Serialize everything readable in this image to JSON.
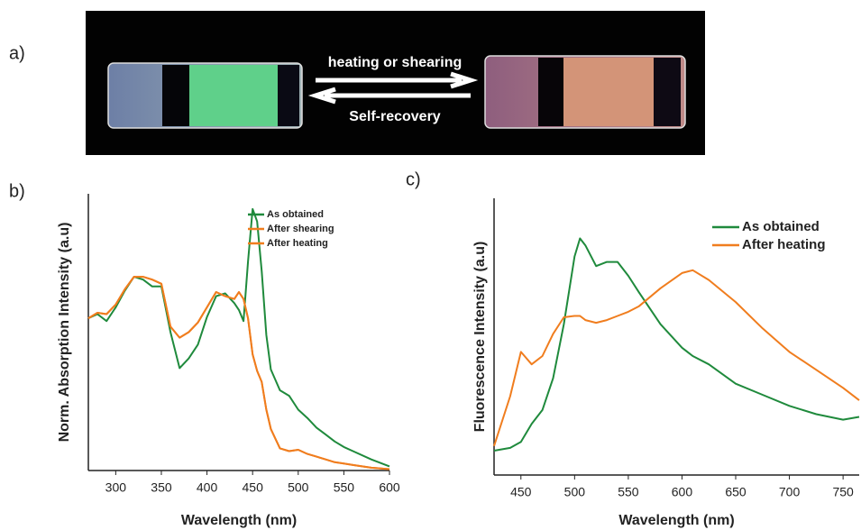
{
  "panels": {
    "a": "a)",
    "b": "b)",
    "c": "c)"
  },
  "photo": {
    "forward": "heating or shearing",
    "backward": "Self-recovery"
  },
  "chart_data": [
    {
      "type": "line",
      "x_label": "Wavelength (nm)",
      "y_label": "Norm. Absorption Intensity (a.u)",
      "x": [
        270,
        280,
        290,
        300,
        310,
        320,
        330,
        340,
        350,
        360,
        370,
        380,
        390,
        400,
        410,
        420,
        430,
        435,
        440,
        445,
        450,
        455,
        460,
        465,
        470,
        480,
        490,
        500,
        510,
        520,
        530,
        540,
        550,
        560,
        580,
        600
      ],
      "xlim": [
        270,
        600
      ],
      "xticks": [
        300,
        350,
        400,
        450,
        500,
        550,
        600
      ],
      "ylim": [
        0,
        1
      ],
      "legend": "top-center",
      "series": [
        {
          "name": "As obtained",
          "color": "#1f8a3c",
          "values": [
            0.55,
            0.565,
            0.54,
            0.59,
            0.65,
            0.7,
            0.69,
            0.665,
            0.665,
            0.5,
            0.37,
            0.405,
            0.455,
            0.555,
            0.63,
            0.64,
            0.605,
            0.58,
            0.54,
            0.755,
            0.945,
            0.9,
            0.72,
            0.49,
            0.365,
            0.29,
            0.27,
            0.22,
            0.19,
            0.155,
            0.13,
            0.105,
            0.085,
            0.07,
            0.04,
            0.015
          ]
        },
        {
          "name": "After shearing",
          "color": "#f07d1e",
          "values": [
            0.55,
            0.57,
            0.565,
            0.6,
            0.655,
            0.7,
            0.7,
            0.69,
            0.675,
            0.52,
            0.48,
            0.5,
            0.535,
            0.59,
            0.645,
            0.63,
            0.62,
            0.645,
            0.62,
            0.55,
            0.42,
            0.36,
            0.32,
            0.22,
            0.15,
            0.08,
            0.07,
            0.075,
            0.06,
            0.05,
            0.04,
            0.03,
            0.025,
            0.02,
            0.01,
            0.005
          ]
        },
        {
          "name": "After heating",
          "color": "#f07d1e",
          "values": [
            0.55,
            0.57,
            0.565,
            0.6,
            0.655,
            0.7,
            0.7,
            0.69,
            0.675,
            0.52,
            0.48,
            0.5,
            0.535,
            0.59,
            0.645,
            0.63,
            0.62,
            0.645,
            0.62,
            0.55,
            0.42,
            0.36,
            0.32,
            0.22,
            0.15,
            0.08,
            0.07,
            0.075,
            0.06,
            0.05,
            0.04,
            0.03,
            0.025,
            0.02,
            0.01,
            0.005
          ]
        }
      ]
    },
    {
      "type": "line",
      "x_label": "Wavelength (nm)",
      "y_label": "Fluorescence Intensity (a.u)",
      "x": [
        425,
        440,
        450,
        460,
        470,
        480,
        490,
        500,
        505,
        510,
        520,
        530,
        540,
        550,
        560,
        580,
        600,
        610,
        625,
        650,
        675,
        700,
        725,
        750,
        765
      ],
      "xlim": [
        425,
        765
      ],
      "xticks": [
        450,
        500,
        550,
        600,
        650,
        700,
        750
      ],
      "ylim": [
        0,
        1
      ],
      "legend": "top-right",
      "series": [
        {
          "name": "As obtained",
          "color": "#1f8a3c",
          "values": [
            0.088,
            0.098,
            0.12,
            0.185,
            0.235,
            0.35,
            0.545,
            0.79,
            0.855,
            0.83,
            0.755,
            0.77,
            0.77,
            0.72,
            0.66,
            0.545,
            0.46,
            0.43,
            0.4,
            0.33,
            0.29,
            0.25,
            0.22,
            0.2,
            0.21
          ]
        },
        {
          "name": "After heating",
          "color": "#f07d1e",
          "values": [
            0.105,
            0.285,
            0.445,
            0.4,
            0.43,
            0.51,
            0.57,
            0.575,
            0.575,
            0.56,
            0.55,
            0.56,
            0.575,
            0.59,
            0.61,
            0.675,
            0.73,
            0.74,
            0.705,
            0.625,
            0.53,
            0.445,
            0.38,
            0.315,
            0.27
          ]
        }
      ]
    }
  ]
}
